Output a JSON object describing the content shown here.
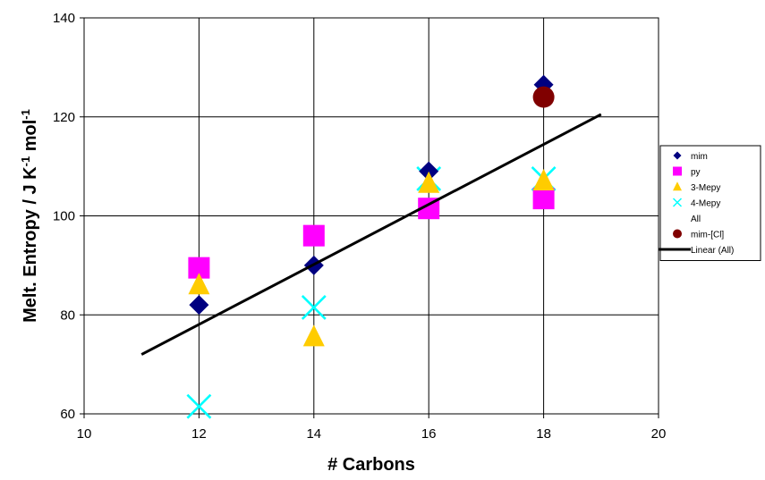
{
  "chart_data": {
    "type": "scatter",
    "title": "",
    "xlabel": "# Carbons",
    "ylabel_main": "Melt. Entropy / J K",
    "ylabel_exp1": "-1",
    "ylabel_mid": " mol",
    "ylabel_exp2": "-1",
    "xlim": [
      10,
      20
    ],
    "ylim": [
      60,
      140
    ],
    "xticks": [
      10,
      12,
      14,
      16,
      18,
      20
    ],
    "yticks": [
      60,
      80,
      100,
      120,
      140
    ],
    "grid": "vertical-and-horizontal",
    "legend_position": "right",
    "series": [
      {
        "name": "mim",
        "marker": "diamond",
        "color": "#000080",
        "points": [
          [
            12,
            82
          ],
          [
            14,
            90
          ],
          [
            16,
            109
          ],
          [
            18,
            126.5
          ]
        ]
      },
      {
        "name": "py",
        "marker": "square",
        "color": "#ff00ff",
        "points": [
          [
            12,
            89.5
          ],
          [
            14,
            96
          ],
          [
            16,
            101.5
          ],
          [
            18,
            103.5
          ]
        ]
      },
      {
        "name": "3-Mepy",
        "marker": "triangle",
        "color": "#ffcc00",
        "points": [
          [
            12,
            86
          ],
          [
            14,
            75.5
          ],
          [
            16,
            106.5
          ],
          [
            18,
            107
          ]
        ]
      },
      {
        "name": "4-Mepy",
        "marker": "x",
        "color": "#00ffff",
        "points": [
          [
            12,
            61.5
          ],
          [
            14,
            81.5
          ],
          [
            16,
            107.5
          ],
          [
            18,
            107.5
          ]
        ]
      },
      {
        "name": "All",
        "marker": "none",
        "color": "#000000",
        "points": []
      },
      {
        "name": "mim-[Cl]",
        "marker": "circle",
        "color": "#800000",
        "points": [
          [
            18,
            124
          ]
        ]
      },
      {
        "name": "Linear (All)",
        "marker": "line",
        "color": "#000000",
        "points": [
          [
            11,
            72
          ],
          [
            19,
            120.5
          ]
        ]
      }
    ]
  }
}
